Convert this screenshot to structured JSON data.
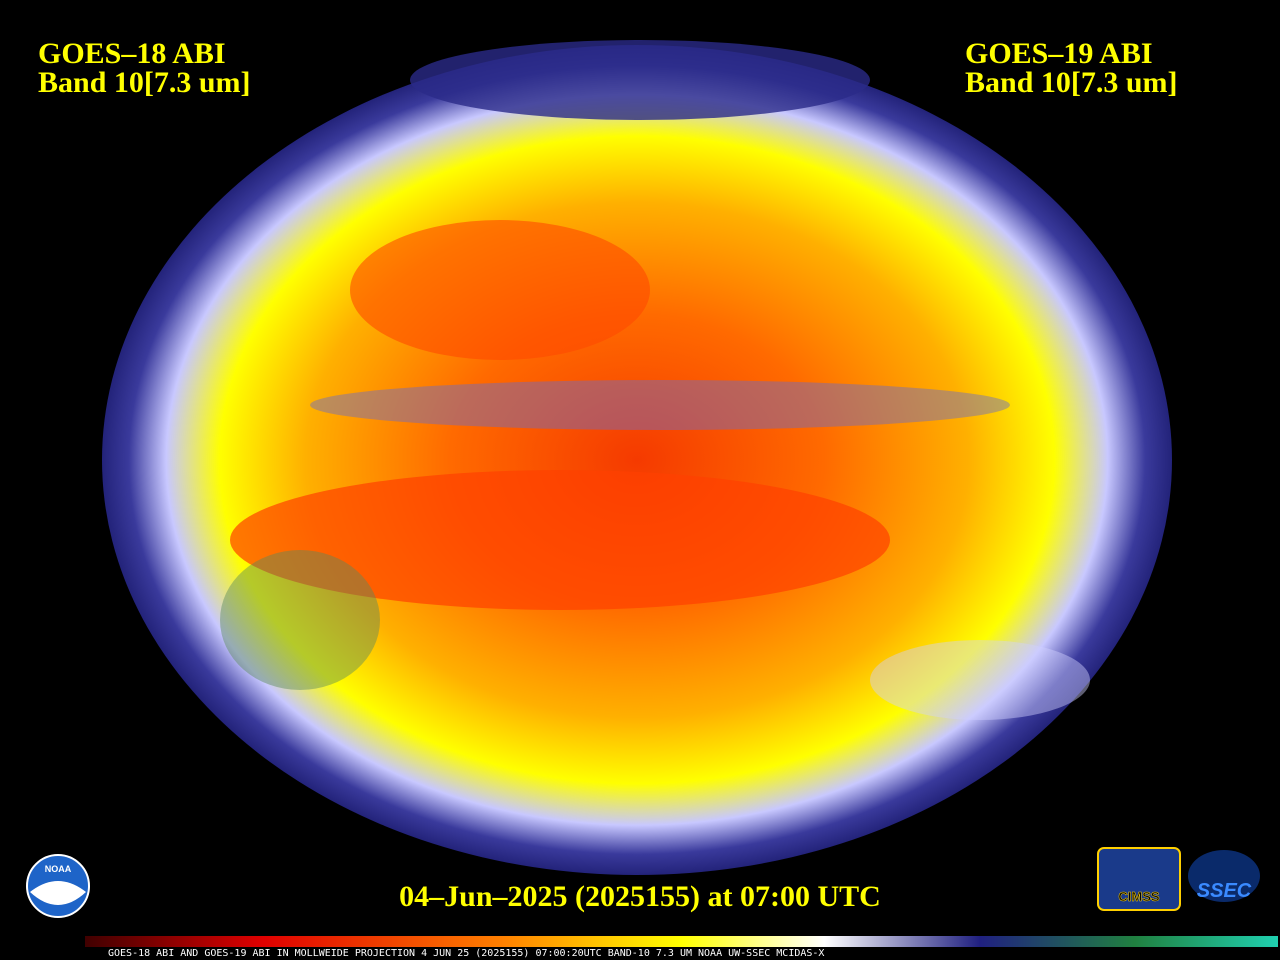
{
  "header": {
    "left": {
      "title": "GOES–18 ABI",
      "band": "Band 10[7.3 um]"
    },
    "right": {
      "title": "GOES–19 ABI",
      "band": "Band 10[7.3 um]"
    }
  },
  "footer": {
    "timestamp": "04–Jun–2025 (2025155) at 07:00 UTC"
  },
  "logos": {
    "noaa": "NOAA",
    "cimss": "CIMSS",
    "ssec": "SSEC"
  },
  "colorbar": {
    "caption": "GOES-18 ABI AND GOES-19 ABI IN MOLLWEIDE PROJECTION 4 JUN 25 (2025155) 07:00:20UTC BAND-10 7.3 UM NOAA UW-SSEC MCIDAS-X"
  }
}
